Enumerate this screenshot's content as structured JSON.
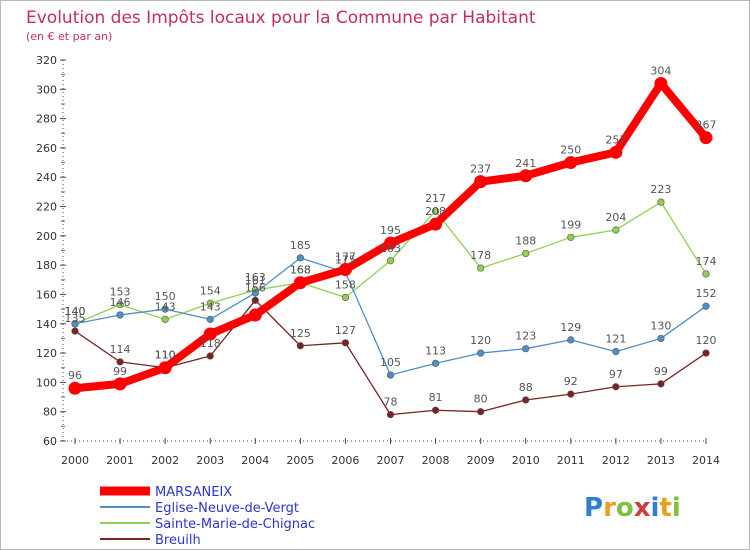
{
  "chart_data": {
    "type": "line",
    "title": "Evolution des Impôts locaux pour la Commune par Habitant",
    "subtitle": "(en € et par an)",
    "x": [
      "2000",
      "2001",
      "2002",
      "2003",
      "2004",
      "2005",
      "2006",
      "2007",
      "2008",
      "2009",
      "2010",
      "2011",
      "2012",
      "2013",
      "2014"
    ],
    "ylim": [
      60,
      320
    ],
    "yticks": [
      "60",
      "80",
      "100",
      "120",
      "140",
      "160",
      "180",
      "200",
      "220",
      "240",
      "260",
      "280",
      "300",
      "320"
    ],
    "grid": false,
    "legend_position": "bottom-left",
    "series": [
      {
        "name": "MARSANEIX",
        "color": "#ff0000",
        "values": [
          96,
          99,
          110,
          133,
          146,
          168,
          177,
          195,
          208,
          237,
          241,
          250,
          257,
          304,
          267
        ],
        "labels": [
          "96",
          "99",
          "110",
          "",
          "",
          "168",
          "177",
          "195",
          "208",
          "237",
          "241",
          "250",
          "257",
          "304",
          "267"
        ]
      },
      {
        "name": "Eglise-Neuve-de-Vergt",
        "color": "#4f8fc9",
        "values": [
          140,
          146,
          150,
          143,
          161,
          185,
          175,
          105,
          113,
          120,
          123,
          129,
          121,
          130,
          152
        ],
        "labels": [
          "140",
          "146",
          "150",
          "143",
          "161",
          "185",
          "175",
          "105",
          "113",
          "120",
          "123",
          "129",
          "121",
          "130",
          "152"
        ]
      },
      {
        "name": "Sainte-Marie-de-Chignac",
        "color": "#8fd14f",
        "values": [
          140,
          153,
          143,
          154,
          163,
          168,
          158,
          183,
          217,
          178,
          188,
          199,
          204,
          223,
          174
        ],
        "labels": [
          "140",
          "153",
          "143",
          "154",
          "163",
          "168",
          "158",
          "183",
          "217",
          "178",
          "188",
          "199",
          "204",
          "223",
          "174"
        ]
      },
      {
        "name": "Breuilh",
        "color": "#7b2323",
        "values": [
          135,
          114,
          110,
          118,
          156,
          125,
          127,
          78,
          81,
          80,
          88,
          92,
          97,
          99,
          120
        ],
        "labels": [
          "135",
          "114",
          "110",
          "118",
          "156",
          "125",
          "127",
          "78",
          "81",
          "80",
          "88",
          "92",
          "97",
          "99",
          "120"
        ]
      }
    ]
  },
  "logo": {
    "text": "Proxiti"
  }
}
